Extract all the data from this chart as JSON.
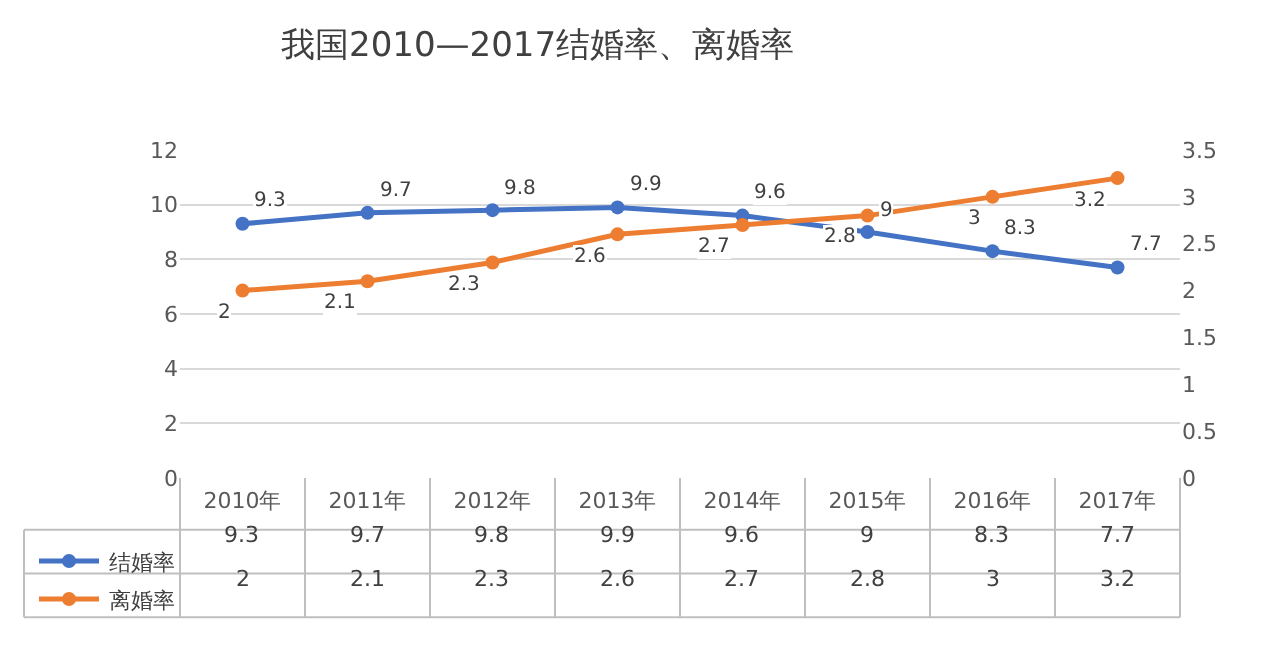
{
  "chart_data": {
    "type": "line",
    "title": "我国2010—2017结婚率、离婚率",
    "categories": [
      "2010年",
      "2011年",
      "2012年",
      "2013年",
      "2014年",
      "2015年",
      "2016年",
      "2017年"
    ],
    "series": [
      {
        "name": "结婚率",
        "color": "#4472c4",
        "values": [
          9.3,
          9.7,
          9.8,
          9.9,
          9.6,
          9,
          8.3,
          7.7
        ],
        "value_labels": [
          "9.3",
          "9.7",
          "9.8",
          "9.9",
          "9.6",
          "9",
          "8.3",
          "7.7"
        ]
      },
      {
        "name": "离婚率",
        "color": "#ed7d31",
        "axis": "y2",
        "values": [
          2,
          2.1,
          2.3,
          2.6,
          2.7,
          2.8,
          3,
          3.2
        ],
        "value_labels": [
          "2",
          "2.1",
          "2.3",
          "2.6",
          "2.7",
          "2.8",
          "3",
          "3.2"
        ]
      }
    ],
    "ylim": [
      0,
      12
    ],
    "yticks": [
      0,
      2,
      4,
      6,
      8,
      10,
      12
    ],
    "y2lim": [
      0,
      3.5
    ],
    "y2ticks": [
      0,
      0.5,
      1,
      1.5,
      2,
      2.5,
      3,
      3.5
    ],
    "annotations": [
      "9.3",
      "9.7",
      "9.8",
      "9.9",
      "9.6",
      "9",
      "8.3",
      "7.7",
      "2",
      "2.1",
      "2.3",
      "2.6",
      "2.7",
      "2.8",
      "3",
      "3.2"
    ],
    "grid": "y",
    "legend": "bottom",
    "marker": "circle",
    "line_style": "solid",
    "data_labels": true
  }
}
